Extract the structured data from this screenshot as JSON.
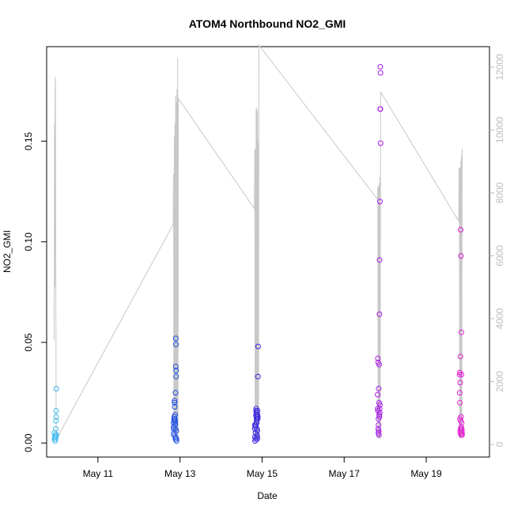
{
  "chart_data": {
    "type": "scatter",
    "title": "ATOM4 Northbound NO2_GMI",
    "xlabel": "Date",
    "ylabel": "NO2_GMI",
    "x_ticks": [
      "May 11",
      "May 13",
      "May 15",
      "May 17",
      "May 19"
    ],
    "y_ticks": [
      "0.00",
      "0.05",
      "0.10",
      "0.15"
    ],
    "y2_ticks": [
      "0",
      "2000",
      "4000",
      "6000",
      "8000",
      "10000",
      "12000"
    ],
    "xlim": [
      "2018-05-09T18:00",
      "2018-05-20T13:00"
    ],
    "ylim": [
      -0.007,
      0.197
    ],
    "y2lim": [
      -400,
      12650
    ],
    "grid": false,
    "colors": {
      "altitude_line": "#c8c8c8",
      "flight1": "#3fb8f0",
      "flight2": "#1f4fe6",
      "flight3": "#3a22e0",
      "flight4": "#a81be8",
      "flight5": "#e61fd4"
    },
    "secondary_series": {
      "axis": "right",
      "points": [
        [
          "2018-05-09T22:24",
          3300
        ],
        [
          "2018-05-09T22:36",
          10200
        ],
        [
          "2018-05-09T22:48",
          5000
        ],
        [
          "2018-05-09T22:58",
          11300
        ],
        [
          "2018-05-09T23:08",
          11700
        ],
        [
          "2018-05-09T23:34",
          400
        ],
        [
          "2018-05-10T00:00",
          200
        ],
        [
          "2018-05-12T20:00",
          7000
        ],
        [
          "2018-05-12T20:14",
          8600
        ],
        [
          "2018-05-12T20:26",
          300
        ],
        [
          "2018-05-12T20:38",
          9800
        ],
        [
          "2018-05-12T20:50",
          200
        ],
        [
          "2018-05-12T21:02",
          10200
        ],
        [
          "2018-05-12T21:14",
          200
        ],
        [
          "2018-05-12T21:26",
          11100
        ],
        [
          "2018-05-12T21:38",
          200
        ],
        [
          "2018-05-12T21:50",
          10900
        ],
        [
          "2018-05-12T22:02",
          200
        ],
        [
          "2018-05-12T22:14",
          11300
        ],
        [
          "2018-05-12T22:26",
          200
        ],
        [
          "2018-05-12T22:38",
          12300
        ],
        [
          "2018-05-12T22:50",
          200
        ],
        [
          "2018-05-12T23:02",
          11000
        ],
        [
          "2018-05-14T19:30",
          7500
        ],
        [
          "2018-05-14T19:44",
          9400
        ],
        [
          "2018-05-14T19:56",
          200
        ],
        [
          "2018-05-14T20:08",
          9400
        ],
        [
          "2018-05-14T20:20",
          200
        ],
        [
          "2018-05-14T20:32",
          10700
        ],
        [
          "2018-05-14T20:44",
          200
        ],
        [
          "2018-05-14T20:56",
          10700
        ],
        [
          "2018-05-14T21:08",
          200
        ],
        [
          "2018-05-14T21:20",
          10600
        ],
        [
          "2018-05-14T21:32",
          200
        ],
        [
          "2018-05-14T21:44",
          9600
        ],
        [
          "2018-05-14T21:56",
          200
        ],
        [
          "2018-05-14T22:08",
          12700
        ],
        [
          "2018-05-17T19:30",
          7800
        ],
        [
          "2018-05-17T19:42",
          8200
        ],
        [
          "2018-05-17T19:54",
          200
        ],
        [
          "2018-05-17T20:06",
          8200
        ],
        [
          "2018-05-17T20:18",
          200
        ],
        [
          "2018-05-17T20:30",
          8300
        ],
        [
          "2018-05-17T20:42",
          200
        ],
        [
          "2018-05-17T20:54",
          8500
        ],
        [
          "2018-05-17T21:06",
          200
        ],
        [
          "2018-05-17T21:18",
          10800
        ],
        [
          "2018-05-17T21:30",
          11200
        ],
        [
          "2018-05-19T19:00",
          7100
        ],
        [
          "2018-05-19T19:12",
          8800
        ],
        [
          "2018-05-19T19:24",
          8600
        ],
        [
          "2018-05-19T19:36",
          200
        ],
        [
          "2018-05-19T19:48",
          8800
        ],
        [
          "2018-05-19T20:00",
          200
        ],
        [
          "2018-05-19T20:12",
          9000
        ],
        [
          "2018-05-19T20:24",
          200
        ],
        [
          "2018-05-19T20:36",
          9200
        ],
        [
          "2018-05-19T20:48",
          200
        ],
        [
          "2018-05-19T21:00",
          9400
        ],
        [
          "2018-05-19T21:12",
          9300
        ]
      ]
    },
    "series": [
      {
        "points": [
          [
            "2018-05-09T22:30",
            0.005
          ],
          [
            "2018-05-09T22:40",
            0.002
          ],
          [
            "2018-05-09T22:50",
            0.003
          ],
          [
            "2018-05-09T22:56",
            0.001
          ],
          [
            "2018-05-09T23:02",
            0.002
          ],
          [
            "2018-05-09T23:08",
            0.004
          ],
          [
            "2018-05-09T23:14",
            0.003
          ],
          [
            "2018-05-09T23:20",
            0.007
          ],
          [
            "2018-05-09T23:26",
            0.011
          ],
          [
            "2018-05-09T23:30",
            0.016
          ],
          [
            "2018-05-09T23:34",
            0.013
          ],
          [
            "2018-05-09T23:38",
            0.027
          ],
          [
            "2018-05-09T23:44",
            0.004
          ]
        ]
      },
      {
        "points": [
          [
            "2018-05-12T20:10",
            0.01
          ],
          [
            "2018-05-12T20:14",
            0.008
          ],
          [
            "2018-05-12T20:18",
            0.007
          ],
          [
            "2018-05-12T20:22",
            0.005
          ],
          [
            "2018-05-12T20:26",
            0.004
          ],
          [
            "2018-05-12T20:32",
            0.012
          ],
          [
            "2018-05-12T20:36",
            0.011
          ],
          [
            "2018-05-12T20:42",
            0.013
          ],
          [
            "2018-05-12T20:46",
            0.02
          ],
          [
            "2018-05-12T20:50",
            0.021
          ],
          [
            "2018-05-12T20:54",
            0.018
          ],
          [
            "2018-05-12T20:58",
            0.012
          ],
          [
            "2018-05-12T21:04",
            0.011
          ],
          [
            "2018-05-12T21:08",
            0.01
          ],
          [
            "2018-05-12T21:12",
            0.009
          ],
          [
            "2018-05-12T21:16",
            0.007
          ],
          [
            "2018-05-12T21:20",
            0.002
          ],
          [
            "2018-05-12T21:24",
            0.025
          ],
          [
            "2018-05-12T21:28",
            0.038
          ],
          [
            "2018-05-12T21:32",
            0.052
          ],
          [
            "2018-05-12T21:36",
            0.049
          ],
          [
            "2018-05-12T21:40",
            0.036
          ],
          [
            "2018-05-12T21:44",
            0.033
          ],
          [
            "2018-05-12T21:48",
            0.006
          ],
          [
            "2018-05-12T21:52",
            0.002
          ],
          [
            "2018-05-12T21:56",
            0.001
          ],
          [
            "2018-05-12T21:22",
            0.003
          ],
          [
            "2018-05-12T21:10",
            0.014
          ]
        ]
      },
      {
        "points": [
          [
            "2018-05-14T19:40",
            0.007
          ],
          [
            "2018-05-14T19:46",
            0.009
          ],
          [
            "2018-05-14T19:52",
            0.003
          ],
          [
            "2018-05-14T19:56",
            0.001
          ],
          [
            "2018-05-14T20:02",
            0.008
          ],
          [
            "2018-05-14T20:08",
            0.005
          ],
          [
            "2018-05-14T20:14",
            0.002
          ],
          [
            "2018-05-14T20:20",
            0.009
          ],
          [
            "2018-05-14T20:26",
            0.014
          ],
          [
            "2018-05-14T20:30",
            0.016
          ],
          [
            "2018-05-14T20:34",
            0.017
          ],
          [
            "2018-05-14T20:38",
            0.013
          ],
          [
            "2018-05-14T20:42",
            0.011
          ],
          [
            "2018-05-14T20:46",
            0.015
          ],
          [
            "2018-05-14T20:50",
            0.01
          ],
          [
            "2018-05-14T20:54",
            0.012
          ],
          [
            "2018-05-14T20:58",
            0.007
          ],
          [
            "2018-05-14T21:02",
            0.004
          ],
          [
            "2018-05-14T21:06",
            0.003
          ],
          [
            "2018-05-14T21:10",
            0.002
          ],
          [
            "2018-05-14T21:14",
            0.006
          ],
          [
            "2018-05-14T21:18",
            0.014
          ],
          [
            "2018-05-14T21:22",
            0.016
          ],
          [
            "2018-05-14T21:26",
            0.012
          ],
          [
            "2018-05-14T21:30",
            0.013
          ],
          [
            "2018-05-14T21:34",
            0.033
          ],
          [
            "2018-05-14T21:40",
            0.048
          ]
        ]
      },
      {
        "points": [
          [
            "2018-05-17T19:36",
            0.024
          ],
          [
            "2018-05-17T19:40",
            0.017
          ],
          [
            "2018-05-17T19:44",
            0.042
          ],
          [
            "2018-05-17T19:48",
            0.016
          ],
          [
            "2018-05-17T19:52",
            0.04
          ],
          [
            "2018-05-17T19:56",
            0.007
          ],
          [
            "2018-05-17T20:00",
            0.005
          ],
          [
            "2018-05-17T20:04",
            0.012
          ],
          [
            "2018-05-17T20:08",
            0.009
          ],
          [
            "2018-05-17T20:12",
            0.027
          ],
          [
            "2018-05-17T20:16",
            0.006
          ],
          [
            "2018-05-17T20:20",
            0.004
          ],
          [
            "2018-05-17T20:24",
            0.02
          ],
          [
            "2018-05-17T20:28",
            0.039
          ],
          [
            "2018-05-17T20:32",
            0.014
          ],
          [
            "2018-05-17T20:36",
            0.013
          ],
          [
            "2018-05-17T20:40",
            0.064
          ],
          [
            "2018-05-17T20:44",
            0.091
          ],
          [
            "2018-05-17T20:48",
            0.017
          ],
          [
            "2018-05-17T20:52",
            0.015
          ],
          [
            "2018-05-17T20:56",
            0.019
          ],
          [
            "2018-05-17T21:00",
            0.12
          ],
          [
            "2018-05-17T21:04",
            0.166
          ],
          [
            "2018-05-17T21:08",
            0.187
          ],
          [
            "2018-05-17T21:12",
            0.166
          ],
          [
            "2018-05-17T21:16",
            0.184
          ],
          [
            "2018-05-17T21:20",
            0.149
          ]
        ]
      },
      {
        "points": [
          [
            "2018-05-19T19:30",
            0.034
          ],
          [
            "2018-05-19T19:34",
            0.025
          ],
          [
            "2018-05-19T19:38",
            0.02
          ],
          [
            "2018-05-19T19:42",
            0.035
          ],
          [
            "2018-05-19T19:46",
            0.012
          ],
          [
            "2018-05-19T19:50",
            0.03
          ],
          [
            "2018-05-19T19:54",
            0.006
          ],
          [
            "2018-05-19T19:58",
            0.005
          ],
          [
            "2018-05-19T20:02",
            0.043
          ],
          [
            "2018-05-19T20:06",
            0.106
          ],
          [
            "2018-05-19T20:10",
            0.011
          ],
          [
            "2018-05-19T20:14",
            0.007
          ],
          [
            "2018-05-19T20:18",
            0.093
          ],
          [
            "2018-05-19T20:22",
            0.013
          ],
          [
            "2018-05-19T20:26",
            0.008
          ],
          [
            "2018-05-19T20:30",
            0.004
          ],
          [
            "2018-05-19T20:34",
            0.055
          ],
          [
            "2018-05-19T20:38",
            0.034
          ],
          [
            "2018-05-19T20:42",
            0.01
          ],
          [
            "2018-05-19T20:46",
            0.006
          ],
          [
            "2018-05-19T20:50",
            0.007
          ],
          [
            "2018-05-19T20:54",
            0.005
          ],
          [
            "2018-05-19T20:58",
            0.004
          ]
        ]
      }
    ]
  }
}
